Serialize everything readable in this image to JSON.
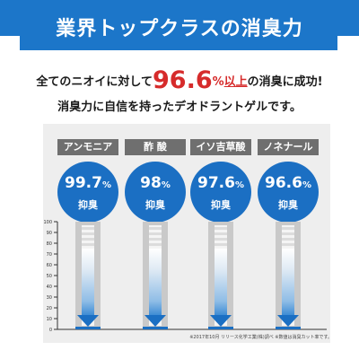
{
  "banner": {
    "title": "業界トップクラスの消臭力"
  },
  "headline": {
    "prefix": "全てのニオイに対して",
    "value": "96.6",
    "unit": "%",
    "emphasis": "以上",
    "suffix": "の消臭に成功!"
  },
  "subline": "消臭力に自信を持ったデオドラントゲルです。",
  "footnote": "※2017年10月 リリース化学工業(株)調べ ※数値は消臭カット率です。",
  "colors": {
    "accent_blue": "#1b6fc3",
    "banner_blue": "#1c76c9",
    "headline_red": "#d62b2b",
    "label_gray": "#6f6f6f"
  },
  "chart_data": {
    "type": "bar",
    "categories": [
      "アンモニア",
      "酢 酸",
      "イソ吉草酸",
      "ノネナール"
    ],
    "values": [
      99.7,
      98.0,
      97.6,
      96.6
    ],
    "value_unit": "%",
    "value_caption": "抑臭",
    "yticks": [
      0,
      10,
      20,
      30,
      40,
      50,
      60,
      70,
      80,
      90,
      100
    ],
    "ylim": [
      0,
      100
    ],
    "grid": false
  }
}
